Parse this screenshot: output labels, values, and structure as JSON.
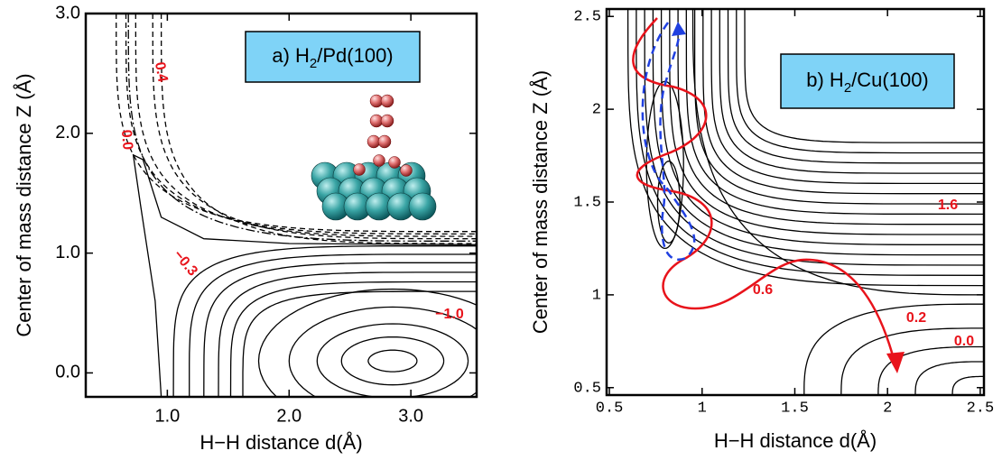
{
  "chart_data": [
    {
      "type": "contour",
      "title_parts": [
        "a) H",
        "2",
        "/Pd(100)"
      ],
      "xlabel": "H−H distance d(Å)",
      "ylabel": "Center of mass distance Z (Å)",
      "xlim": [
        0.33,
        3.54
      ],
      "ylim": [
        -0.2,
        3.0
      ],
      "xticks": [
        {
          "value": 1,
          "label": "1.0"
        },
        {
          "value": 2,
          "label": "2.0"
        },
        {
          "value": 3,
          "label": "3.0"
        }
      ],
      "yticks": [
        {
          "value": 0,
          "label": "0.0"
        },
        {
          "value": 1,
          "label": "1.0"
        },
        {
          "value": 2,
          "label": "2.0"
        },
        {
          "value": 3,
          "label": "3.0"
        }
      ],
      "contour_labels": [
        0.4,
        {
          "value": 0,
          "label": "0.0"
        },
        {
          "value": -0.3,
          "label": "−0.3"
        },
        {
          "value": -1,
          "label": "−1.0"
        }
      ]
    },
    {
      "type": "contour",
      "title_parts": [
        "b) H",
        "2",
        "/Cu(100)"
      ],
      "xlabel": "H−H distance d(Å)",
      "ylabel": "Center of mass distance Z (Å)",
      "xlim": [
        0.485,
        2.52
      ],
      "ylim": [
        0.46,
        2.54
      ],
      "xticks": [
        0.5,
        1,
        1.5,
        2,
        2.5
      ],
      "yticks": [
        0.5,
        1,
        1.5,
        2,
        2.5
      ],
      "contour_labels": [
        1.6,
        0.6,
        0.2,
        {
          "value": 0,
          "label": "0.0"
        }
      ]
    }
  ]
}
